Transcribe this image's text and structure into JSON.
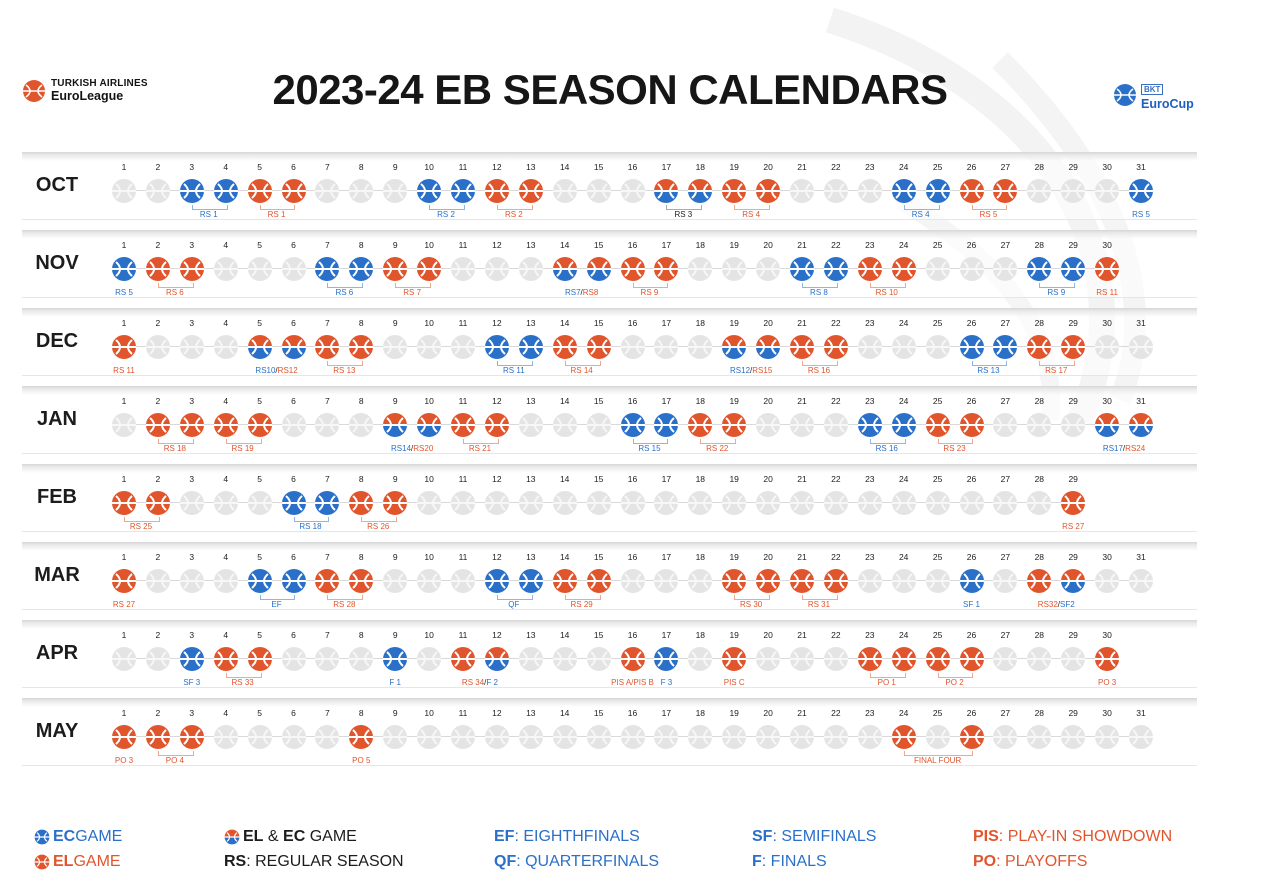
{
  "title": "2023-24 EB SEASON CALENDARS",
  "euroleague_logo": {
    "line1": "TURKISH AIRLINES",
    "line2": "EuroLeague"
  },
  "eurocup_logo": {
    "line1": "BKT",
    "line2": "EuroCup"
  },
  "colors": {
    "ec": "#2a70c9",
    "el": "#e1552d",
    "empty": "#e4e4e4"
  },
  "months": [
    {
      "name": "OCT",
      "days": 31,
      "ec": [
        3,
        4,
        10,
        11,
        17,
        18,
        24,
        25,
        31
      ],
      "el": [
        5,
        6,
        12,
        13,
        17,
        18,
        19,
        20,
        26,
        27
      ],
      "both": [
        17,
        18
      ],
      "tags": [
        {
          "day": 3.5,
          "text": "RS 1",
          "type": "ec",
          "span": [
            3,
            4
          ]
        },
        {
          "day": 5.5,
          "text": "RS 1",
          "type": "el",
          "span": [
            5,
            6
          ]
        },
        {
          "day": 10.5,
          "text": "RS 2",
          "type": "ec",
          "span": [
            10,
            11
          ]
        },
        {
          "day": 12.5,
          "text": "RS 2",
          "type": "el",
          "span": [
            12,
            13
          ]
        },
        {
          "day": 17.5,
          "text": "RS 3",
          "type": "dk",
          "span": [
            17,
            18
          ]
        },
        {
          "day": 19.5,
          "text": "RS 4",
          "type": "el",
          "span": [
            19,
            20
          ]
        },
        {
          "day": 24.5,
          "text": "RS 4",
          "type": "ec",
          "span": [
            24,
            25
          ]
        },
        {
          "day": 26.5,
          "text": "RS 5",
          "type": "el",
          "span": [
            26,
            27
          ]
        },
        {
          "day": 31,
          "text": "RS 5",
          "type": "ec"
        }
      ]
    },
    {
      "name": "NOV",
      "days": 30,
      "ec": [
        1,
        7,
        8,
        14,
        15,
        21,
        22,
        28,
        29
      ],
      "el": [
        2,
        3,
        9,
        10,
        14,
        15,
        16,
        17,
        23,
        24,
        30
      ],
      "both": [
        14,
        15
      ],
      "tags": [
        {
          "day": 1,
          "text": "RS 5",
          "type": "ec"
        },
        {
          "day": 2.5,
          "text": "RS 6",
          "type": "el",
          "span": [
            2,
            3
          ]
        },
        {
          "day": 7.5,
          "text": "RS 6",
          "type": "ec",
          "span": [
            7,
            8
          ]
        },
        {
          "day": 9.5,
          "text": "RS 7",
          "type": "el",
          "span": [
            9,
            10
          ]
        },
        {
          "day": 14.5,
          "text": "RS 7 / RS 8",
          "type": "mix",
          "a": "RS7",
          "b": "RS8"
        },
        {
          "day": 16.5,
          "text": "RS 9",
          "type": "el",
          "span": [
            16,
            17
          ]
        },
        {
          "day": 21.5,
          "text": "RS 8",
          "type": "ec",
          "span": [
            21,
            22
          ]
        },
        {
          "day": 23.5,
          "text": "RS 10",
          "type": "el",
          "span": [
            23,
            24
          ]
        },
        {
          "day": 28.5,
          "text": "RS 9",
          "type": "ec",
          "span": [
            28,
            29
          ]
        },
        {
          "day": 30,
          "text": "RS 11",
          "type": "el"
        }
      ]
    },
    {
      "name": "DEC",
      "days": 31,
      "ec": [
        5,
        6,
        12,
        13,
        19,
        20,
        26,
        27
      ],
      "el": [
        1,
        5,
        6,
        7,
        8,
        14,
        15,
        19,
        20,
        21,
        22,
        28,
        29
      ],
      "both": [
        5,
        6,
        19,
        20
      ],
      "tags": [
        {
          "day": 1,
          "text": "RS 11",
          "type": "el"
        },
        {
          "day": 5.5,
          "text": "RS10 / RS12",
          "type": "mix",
          "a": "RS10",
          "b": "RS12"
        },
        {
          "day": 7.5,
          "text": "RS 13",
          "type": "el",
          "span": [
            7,
            8
          ]
        },
        {
          "day": 12.5,
          "text": "RS 11",
          "type": "ec",
          "span": [
            12,
            13
          ]
        },
        {
          "day": 14.5,
          "text": "RS 14",
          "type": "el",
          "span": [
            14,
            15
          ]
        },
        {
          "day": 19.5,
          "text": "RS 12 / RS 15",
          "type": "mix",
          "a": "RS12",
          "b": "RS15"
        },
        {
          "day": 21.5,
          "text": "RS 16",
          "type": "el",
          "span": [
            21,
            22
          ]
        },
        {
          "day": 26.5,
          "text": "RS 13",
          "type": "ec",
          "span": [
            26,
            27
          ]
        },
        {
          "day": 28.5,
          "text": "RS 17",
          "type": "el",
          "span": [
            28,
            29
          ]
        }
      ]
    },
    {
      "name": "JAN",
      "days": 31,
      "ec": [
        9,
        10,
        16,
        17,
        23,
        24,
        30,
        31
      ],
      "el": [
        2,
        3,
        4,
        5,
        9,
        10,
        11,
        12,
        18,
        19,
        25,
        26,
        30,
        31
      ],
      "both": [
        9,
        10,
        30,
        31
      ],
      "tags": [
        {
          "day": 2.5,
          "text": "RS 18",
          "type": "el",
          "span": [
            2,
            3
          ]
        },
        {
          "day": 4.5,
          "text": "RS 19",
          "type": "el",
          "span": [
            4,
            5
          ]
        },
        {
          "day": 9.5,
          "text": "RS14 / RS20",
          "type": "mix",
          "a": "RS14",
          "b": "RS20"
        },
        {
          "day": 11.5,
          "text": "RS 21",
          "type": "el",
          "span": [
            11,
            12
          ]
        },
        {
          "day": 16.5,
          "text": "RS 15",
          "type": "ec",
          "span": [
            16,
            17
          ]
        },
        {
          "day": 18.5,
          "text": "RS 22",
          "type": "el",
          "span": [
            18,
            19
          ]
        },
        {
          "day": 23.5,
          "text": "RS 16",
          "type": "ec",
          "span": [
            23,
            24
          ]
        },
        {
          "day": 25.5,
          "text": "RS 23",
          "type": "el",
          "span": [
            25,
            26
          ]
        },
        {
          "day": 30.5,
          "text": "RS17 / RS24",
          "type": "mix",
          "a": "RS17",
          "b": "RS24"
        }
      ]
    },
    {
      "name": "FEB",
      "days": 29,
      "ec": [
        6,
        7
      ],
      "el": [
        1,
        2,
        8,
        9,
        29
      ],
      "both": [],
      "tags": [
        {
          "day": 1.5,
          "text": "RS 25",
          "type": "el",
          "span": [
            1,
            2
          ]
        },
        {
          "day": 6.5,
          "text": "RS 18",
          "type": "ec",
          "span": [
            6,
            7
          ]
        },
        {
          "day": 8.5,
          "text": "RS 26",
          "type": "el",
          "span": [
            8,
            9
          ]
        },
        {
          "day": 29,
          "text": "RS 27",
          "type": "el"
        }
      ]
    },
    {
      "name": "MAR",
      "days": 31,
      "ec": [
        5,
        6,
        12,
        13,
        26,
        29
      ],
      "el": [
        1,
        7,
        8,
        14,
        15,
        19,
        20,
        21,
        22,
        28,
        29
      ],
      "both": [
        29
      ],
      "tags": [
        {
          "day": 1,
          "text": "RS 27",
          "type": "el"
        },
        {
          "day": 5.5,
          "text": "EF",
          "type": "ec",
          "span": [
            5,
            6
          ]
        },
        {
          "day": 7.5,
          "text": "RS 28",
          "type": "el",
          "span": [
            7,
            8
          ]
        },
        {
          "day": 12.5,
          "text": "QF",
          "type": "ec",
          "span": [
            12,
            13
          ]
        },
        {
          "day": 14.5,
          "text": "RS 29",
          "type": "el",
          "span": [
            14,
            15
          ]
        },
        {
          "day": 19.5,
          "text": "RS 30",
          "type": "el",
          "span": [
            19,
            20
          ]
        },
        {
          "day": 21.5,
          "text": "RS 31",
          "type": "el",
          "span": [
            21,
            22
          ]
        },
        {
          "day": 26,
          "text": "SF 1",
          "type": "ec"
        },
        {
          "day": 28.5,
          "text": "RS 32 / SF 2",
          "type": "mix",
          "a": "RS32",
          "b": "SF2"
        }
      ]
    },
    {
      "name": "APR",
      "days": 30,
      "ec": [
        3,
        9,
        12,
        17
      ],
      "el": [
        4,
        5,
        11,
        12,
        16,
        19,
        23,
        24,
        25,
        26,
        30
      ],
      "both": [
        12
      ],
      "tags": [
        {
          "day": 3,
          "text": "SF 3",
          "type": "ec"
        },
        {
          "day": 4.5,
          "text": "RS 33",
          "type": "el",
          "span": [
            4,
            5
          ]
        },
        {
          "day": 9,
          "text": "F 1",
          "type": "ec"
        },
        {
          "day": 11.5,
          "text": "RS 34 / F 2",
          "type": "mix",
          "a": "RS 34",
          "b": "F 2"
        },
        {
          "day": 16,
          "text": "PIS A/PIS B",
          "type": "el"
        },
        {
          "day": 17,
          "text": "F 3",
          "type": "ec"
        },
        {
          "day": 19,
          "text": "PIS C",
          "type": "el"
        },
        {
          "day": 23.5,
          "text": "PO 1",
          "type": "el",
          "span": [
            23,
            24
          ]
        },
        {
          "day": 25.5,
          "text": "PO 2",
          "type": "el",
          "span": [
            25,
            26
          ]
        },
        {
          "day": 30,
          "text": "PO 3",
          "type": "el"
        }
      ]
    },
    {
      "name": "MAY",
      "days": 31,
      "ec": [],
      "el": [
        1,
        2,
        3,
        8,
        24,
        26
      ],
      "both": [],
      "tags": [
        {
          "day": 1,
          "text": "PO 3",
          "type": "el"
        },
        {
          "day": 2.5,
          "text": "PO 4",
          "type": "el",
          "span": [
            2,
            3
          ]
        },
        {
          "day": 8,
          "text": "PO 5",
          "type": "el"
        },
        {
          "day": 25,
          "text": "FINAL FOUR",
          "type": "el",
          "span": [
            24,
            26
          ]
        }
      ]
    }
  ],
  "legend": {
    "ec_game_bold": "EC",
    "ec_game_rest": " GAME",
    "el_game_bold": "EL",
    "el_game_rest": " GAME",
    "both_a": "EL",
    "both_amp": " & ",
    "both_b": "EC",
    "both_rest": " GAME",
    "rs_bold": "RS",
    "rs_rest": ": REGULAR SEASON",
    "ef_bold": "EF",
    "ef_rest": ": EIGHTHFINALS",
    "qf_bold": "QF",
    "qf_rest": ": QUARTERFINALS",
    "sf_bold": "SF",
    "sf_rest": ": SEMIFINALS",
    "f_bold": "F",
    "f_rest": ": FINALS",
    "pis_bold": "PIS",
    "pis_rest": ": PLAY-IN SHOWDOWN",
    "po_bold": "PO",
    "po_rest": ": PLAYOFFS"
  }
}
